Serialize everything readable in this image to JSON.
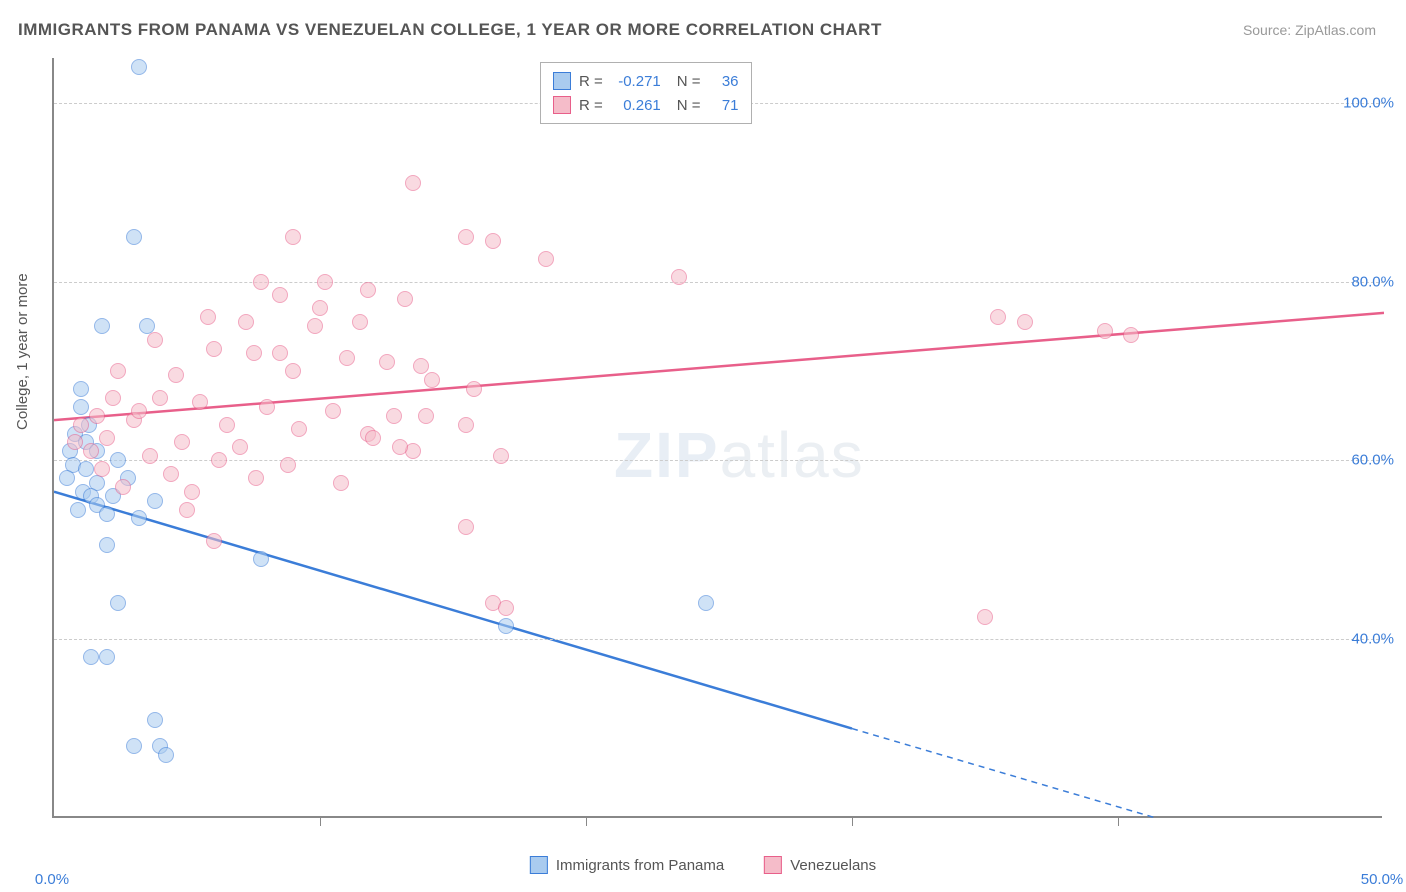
{
  "title": "IMMIGRANTS FROM PANAMA VS VENEZUELAN COLLEGE, 1 YEAR OR MORE CORRELATION CHART",
  "source": "Source: ZipAtlas.com",
  "ylabel": "College, 1 year or more",
  "watermark_a": "ZIP",
  "watermark_b": "atlas",
  "chart": {
    "type": "scatter-correlation",
    "xlim": [
      0,
      50
    ],
    "ylim": [
      20,
      105
    ],
    "xticks": [
      0,
      50
    ],
    "xtick_labels": [
      "0.0%",
      "50.0%"
    ],
    "xtick_minor": [
      10,
      20,
      30,
      40
    ],
    "yticks": [
      40,
      60,
      80,
      100
    ],
    "ytick_labels": [
      "40.0%",
      "60.0%",
      "80.0%",
      "100.0%"
    ],
    "background_color": "#ffffff",
    "grid_color": "#cccccc",
    "axis_color": "#888888",
    "marker_radius": 8,
    "marker_opacity": 0.55,
    "series": [
      {
        "name": "Immigrants from Panama",
        "fill": "#a9cbef",
        "stroke": "#3b7dd8",
        "R": "-0.271",
        "N": "36",
        "trend": {
          "x1": 0,
          "y1": 56.5,
          "x2": 30,
          "y2": 30,
          "dashed_x2": 42,
          "dashed_y2": 19.5,
          "width": 2.5
        },
        "points": [
          [
            3.2,
            104
          ],
          [
            3.0,
            85
          ],
          [
            1.8,
            75
          ],
          [
            3.5,
            75
          ],
          [
            1.0,
            68
          ],
          [
            1.0,
            66
          ],
          [
            1.3,
            64
          ],
          [
            0.8,
            63
          ],
          [
            1.2,
            62
          ],
          [
            0.6,
            61
          ],
          [
            1.6,
            61
          ],
          [
            2.4,
            60
          ],
          [
            0.7,
            59.5
          ],
          [
            1.2,
            59
          ],
          [
            0.5,
            58
          ],
          [
            2.8,
            58
          ],
          [
            1.6,
            57.5
          ],
          [
            1.1,
            56.5
          ],
          [
            2.2,
            56
          ],
          [
            1.4,
            56
          ],
          [
            3.8,
            55.5
          ],
          [
            1.6,
            55
          ],
          [
            0.9,
            54.5
          ],
          [
            2.0,
            54
          ],
          [
            3.2,
            53.5
          ],
          [
            2.0,
            50.5
          ],
          [
            7.8,
            49
          ],
          [
            2.4,
            44
          ],
          [
            17.0,
            41.5
          ],
          [
            1.4,
            38
          ],
          [
            2.0,
            38
          ],
          [
            3.8,
            31
          ],
          [
            3.0,
            28
          ],
          [
            4.0,
            28
          ],
          [
            4.2,
            27
          ],
          [
            24.5,
            44
          ]
        ]
      },
      {
        "name": "Venezuelans",
        "fill": "#f5bcc9",
        "stroke": "#e85f8a",
        "R": "0.261",
        "N": "71",
        "trend": {
          "x1": 0,
          "y1": 64.5,
          "x2": 50,
          "y2": 76.5,
          "width": 2.5
        },
        "points": [
          [
            13.5,
            91
          ],
          [
            9.0,
            85
          ],
          [
            7.8,
            80
          ],
          [
            8.5,
            78.5
          ],
          [
            10.2,
            80
          ],
          [
            11.8,
            79
          ],
          [
            10.0,
            77
          ],
          [
            13.2,
            78
          ],
          [
            5.8,
            76
          ],
          [
            7.2,
            75.5
          ],
          [
            9.8,
            75
          ],
          [
            3.8,
            73.5
          ],
          [
            6.0,
            72.5
          ],
          [
            7.5,
            72
          ],
          [
            11.0,
            71.5
          ],
          [
            12.5,
            71
          ],
          [
            13.8,
            70.5
          ],
          [
            2.4,
            70
          ],
          [
            4.6,
            69.5
          ],
          [
            14.2,
            69
          ],
          [
            15.5,
            85
          ],
          [
            16.5,
            84.5
          ],
          [
            18.5,
            82.5
          ],
          [
            23.5,
            80.5
          ],
          [
            4.0,
            67
          ],
          [
            5.5,
            66.5
          ],
          [
            8.0,
            66
          ],
          [
            10.5,
            65.5
          ],
          [
            14.0,
            65
          ],
          [
            15.8,
            68
          ],
          [
            3.0,
            64.5
          ],
          [
            6.5,
            64
          ],
          [
            9.2,
            63.5
          ],
          [
            11.8,
            63
          ],
          [
            12.8,
            65
          ],
          [
            2.0,
            62.5
          ],
          [
            4.8,
            62
          ],
          [
            7.0,
            61.5
          ],
          [
            13.5,
            61
          ],
          [
            1.4,
            61
          ],
          [
            3.6,
            60.5
          ],
          [
            6.2,
            60
          ],
          [
            8.8,
            59.5
          ],
          [
            12.0,
            62.5
          ],
          [
            1.8,
            59
          ],
          [
            4.4,
            58.5
          ],
          [
            7.6,
            58
          ],
          [
            10.8,
            57.5
          ],
          [
            2.6,
            57
          ],
          [
            5.2,
            56.5
          ],
          [
            9.0,
            70
          ],
          [
            3.2,
            65.5
          ],
          [
            5.0,
            54.5
          ],
          [
            13.0,
            61.5
          ],
          [
            6.0,
            51
          ],
          [
            15.5,
            52.5
          ],
          [
            16.8,
            60.5
          ],
          [
            1.0,
            64
          ],
          [
            1.6,
            65
          ],
          [
            0.8,
            62
          ],
          [
            2.2,
            67
          ],
          [
            15.5,
            64
          ],
          [
            16.5,
            44
          ],
          [
            35.5,
            76
          ],
          [
            36.5,
            75.5
          ],
          [
            39.5,
            74.5
          ],
          [
            40.5,
            74
          ],
          [
            35.0,
            42.5
          ],
          [
            17.0,
            43.5
          ],
          [
            11.5,
            75.5
          ],
          [
            8.5,
            72
          ]
        ]
      }
    ]
  },
  "bottom_legend": [
    {
      "label": "Immigrants from Panama",
      "fill": "#a9cbef",
      "stroke": "#3b7dd8"
    },
    {
      "label": "Venezuelans",
      "fill": "#f5bcc9",
      "stroke": "#e85f8a"
    }
  ],
  "stat_legend": {
    "r_label": "R =",
    "n_label": "N ="
  }
}
